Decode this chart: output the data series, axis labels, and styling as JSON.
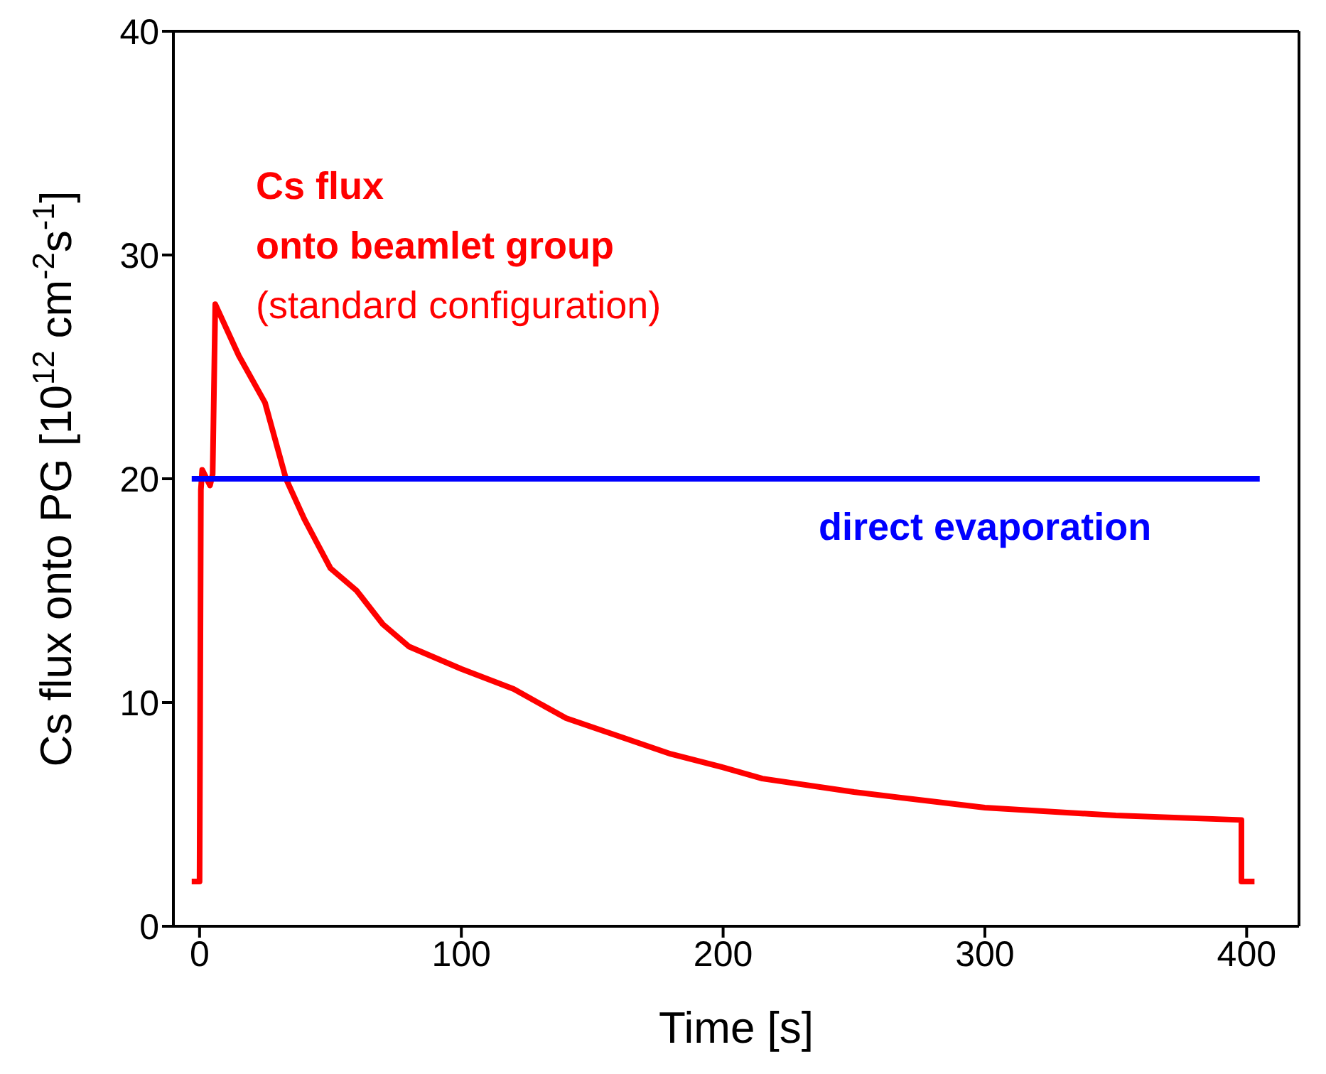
{
  "chart_data": {
    "type": "line",
    "xlabel": "Time [s]",
    "ylabel": "Cs flux onto PG [10$^{12}$ cm$^{-2}$s$^{-1}$]",
    "xlim": [
      -10,
      420
    ],
    "xticks": [
      0,
      100,
      200,
      300,
      400
    ],
    "ylim": [
      0,
      40
    ],
    "yticks": [
      0,
      10,
      20,
      30,
      40
    ],
    "series": [
      {
        "color": "#ff0000",
        "x": [
          -3,
          0,
          0.5,
          1,
          4,
          5,
          6,
          15,
          25,
          33,
          40,
          50,
          60,
          70,
          80,
          100,
          120,
          140,
          160,
          180,
          200,
          215,
          250,
          300,
          350,
          398,
          398,
          403
        ],
        "values": [
          2,
          2,
          19.5,
          20.4,
          19.7,
          20.2,
          27.8,
          25.5,
          23.4,
          20,
          18.2,
          16,
          15,
          13.5,
          12.5,
          11.5,
          10.6,
          9.3,
          8.5,
          7.7,
          7.1,
          6.6,
          6,
          5.3,
          4.95,
          4.75,
          2,
          2
        ]
      },
      {
        "color": "#0000ff",
        "x": [
          -3,
          405
        ],
        "values": [
          20,
          20
        ]
      }
    ],
    "annotations": [
      "Cs flux",
      "onto beamlet group",
      "(standard configuration)",
      "direct evaporation"
    ]
  }
}
